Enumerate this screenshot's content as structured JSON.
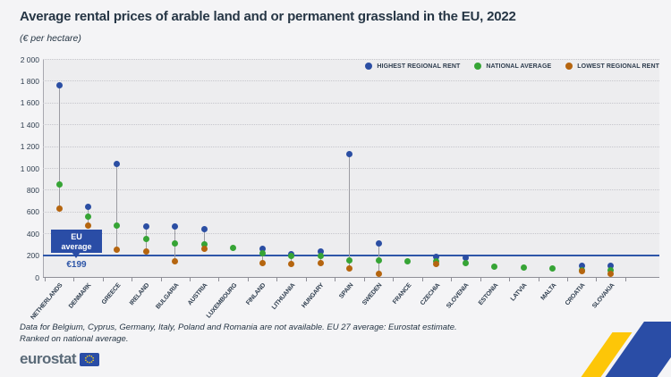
{
  "header": {
    "title": "Average rental prices of arable land and or permanent grassland in the EU, 2022",
    "subtitle": "(€ per hectare)"
  },
  "chart_data": {
    "type": "scatter",
    "title": "Average rental prices of arable land and or permanent grassland in the EU, 2022",
    "ylabel": "€ per hectare",
    "ylim": [
      0,
      2000
    ],
    "ytick_values": [
      0,
      200,
      400,
      600,
      800,
      1000,
      1200,
      1400,
      1600,
      1800,
      2000
    ],
    "ytick_labels": [
      "0",
      "200",
      "400",
      "600",
      "800",
      "1 000",
      "1 200",
      "1 400",
      "1 600",
      "1 800",
      "2 000"
    ],
    "grid": "dotted-horizontal",
    "legend_position": "top-right",
    "categories": [
      "NETHERLANDS",
      "DENMARK",
      "GREECE",
      "IRELAND",
      "BULGARIA",
      "AUSTRIA",
      "LUXEMBOURG",
      "FINLAND",
      "LITHUANIA",
      "HUNGARY",
      "SPAIN",
      "SWEDEN",
      "FRANCE",
      "CZECHIA",
      "SLOVENIA",
      "ESTONIA",
      "LATVIA",
      "MALTA",
      "CROATIA",
      "SLOVAKIA"
    ],
    "series": [
      {
        "name": "HIGHEST REGIONAL RENT",
        "color": "#2b4ea3",
        "values": [
          1755,
          640,
          1040,
          460,
          460,
          435,
          null,
          260,
          205,
          230,
          1130,
          310,
          null,
          185,
          175,
          null,
          null,
          null,
          105,
          100
        ]
      },
      {
        "name": "NATIONAL AVERAGE",
        "color": "#36a435",
        "values": [
          845,
          550,
          470,
          350,
          310,
          300,
          270,
          215,
          195,
          190,
          155,
          150,
          145,
          140,
          130,
          95,
          85,
          80,
          65,
          60
        ]
      },
      {
        "name": "LOWEST REGIONAL RENT",
        "color": "#b5650f",
        "values": [
          630,
          470,
          250,
          230,
          140,
          255,
          null,
          130,
          120,
          130,
          80,
          25,
          null,
          115,
          null,
          null,
          null,
          null,
          55,
          30
        ]
      }
    ],
    "eu_average": {
      "value": 199,
      "label_line1": "EU",
      "label_line2": "average",
      "value_label": "€199"
    }
  },
  "footer": {
    "note_line1": "Data for Belgium, Cyprus, Germany, Italy, Poland and Romania are not available. EU 27 average: Eurostat estimate.",
    "note_line2": "Ranked on national average."
  },
  "logo": {
    "text": "eurostat"
  }
}
